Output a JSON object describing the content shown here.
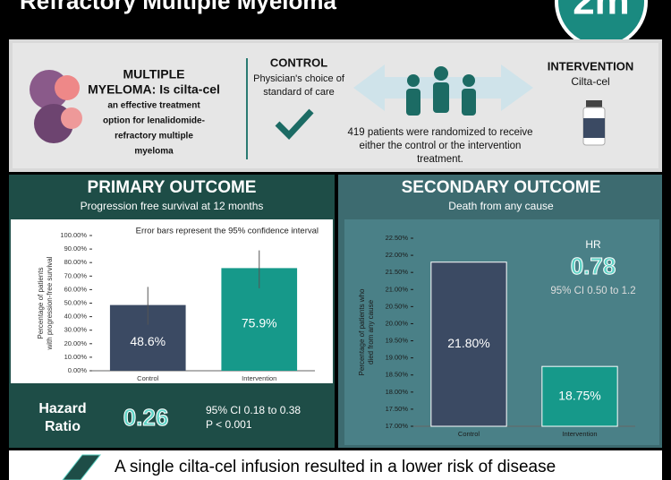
{
  "header": {
    "title": "Refractory Multiple Myeloma",
    "logo": "2m"
  },
  "study": {
    "question_lines": [
      "MULTIPLE",
      "MYELOMA: Is cilta-cel",
      "an effective treatment",
      "option for lenalidomide-",
      "refractory multiple",
      "myeloma"
    ],
    "control_title": "CONTROL",
    "control_lines": [
      "Physician's choice of",
      "standard of care"
    ],
    "intervention_title": "INTERVENTION",
    "intervention_text": "Cilta-cel",
    "randomized_lines": [
      "419 patients were randomized to receive",
      "either the control or the intervention",
      "treatment."
    ]
  },
  "chart_data": [
    {
      "type": "bar",
      "title": "PRIMARY OUTCOME",
      "subtitle": "Progression free survival at 12 months",
      "annotation": "Error bars represent the 95% confidence interval",
      "ylabel": "Percentage of patients with progression-free survival",
      "categories": [
        "Control",
        "Intervention"
      ],
      "values": [
        48.6,
        75.9
      ],
      "value_labels": [
        "48.6%",
        "75.9%"
      ],
      "ci_low": [
        34,
        61
      ],
      "ci_high": [
        62,
        89
      ],
      "colors": [
        "#3b4a63",
        "#16998a"
      ],
      "ylim": [
        0,
        100
      ],
      "yticks": [
        {
          "value": 0,
          "label": "0.00%"
        },
        {
          "value": 10,
          "label": "10.00%"
        },
        {
          "value": 20,
          "label": "20.00%"
        },
        {
          "value": 30,
          "label": "30.00%"
        },
        {
          "value": 40,
          "label": "40.00%"
        },
        {
          "value": 50,
          "label": "50.00%"
        },
        {
          "value": 60,
          "label": "60.00%"
        },
        {
          "value": 70,
          "label": "70.00%"
        },
        {
          "value": 80,
          "label": "80.00%"
        },
        {
          "value": 90,
          "label": "90.00%"
        },
        {
          "value": 100,
          "label": "100.00%"
        }
      ],
      "hr_label": "Hazard Ratio",
      "hr_value": "0.26",
      "hr_ci": "95% CI 0.18 to 0.38",
      "p_value": "P < 0.001"
    },
    {
      "type": "bar",
      "title": "SECONDARY OUTCOME",
      "subtitle": "Death from any cause",
      "ylabel": "Percentage of patients who died from any cause",
      "categories": [
        "Control",
        "Intervention"
      ],
      "values": [
        21.8,
        18.75
      ],
      "value_labels": [
        "21.80%",
        "18.75%"
      ],
      "colors": [
        "#3b4a63",
        "#16998a"
      ],
      "ylim": [
        17,
        22.5
      ],
      "yticks": [
        {
          "value": 17,
          "label": "17.00%"
        },
        {
          "value": 17.5,
          "label": "17.50%"
        },
        {
          "value": 18,
          "label": "18.00%"
        },
        {
          "value": 18.5,
          "label": "18.50%"
        },
        {
          "value": 19,
          "label": "19.00%"
        },
        {
          "value": 19.5,
          "label": "19.50%"
        },
        {
          "value": 20,
          "label": "20.00%"
        },
        {
          "value": 20.5,
          "label": "20.50%"
        },
        {
          "value": 21,
          "label": "21.00%"
        },
        {
          "value": 21.5,
          "label": "21.50%"
        },
        {
          "value": 22,
          "label": "22.00%"
        },
        {
          "value": 22.5,
          "label": "22.50%"
        }
      ],
      "hr_label": "HR",
      "hr_value": "0.78",
      "hr_ci": "95% CI 0.50 to 1.2"
    }
  ],
  "footer": {
    "text": "A single cilta-cel infusion resulted in a lower risk of disease"
  }
}
